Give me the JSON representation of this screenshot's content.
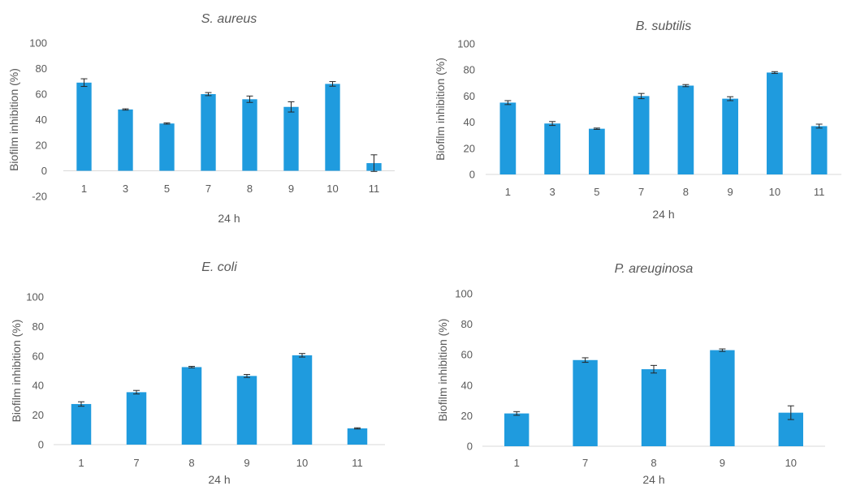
{
  "chart_data": [
    {
      "type": "bar",
      "title": "S. aureus",
      "xlabel": "24 h",
      "ylabel": "Biofilm inhibition (%)",
      "ylim": [
        -20,
        100
      ],
      "yticks": [
        -20,
        0,
        20,
        40,
        60,
        80,
        100
      ],
      "categories": [
        "1",
        "3",
        "5",
        "7",
        "8",
        "9",
        "10",
        "11"
      ],
      "values": [
        69,
        48,
        37,
        60,
        56,
        50,
        68,
        6
      ],
      "errors": [
        3,
        0.5,
        0.5,
        1.2,
        2.5,
        4,
        1.8,
        6.5
      ],
      "grid": false,
      "bar_color": "#1f9bde"
    },
    {
      "type": "bar",
      "title": "B. subtilis",
      "xlabel": "24 h",
      "ylabel": "Biofilm inhibition (%)",
      "ylim": [
        0,
        100
      ],
      "yticks": [
        0,
        20,
        40,
        60,
        80,
        100
      ],
      "categories": [
        "1",
        "3",
        "5",
        "7",
        "8",
        "9",
        "10",
        "11"
      ],
      "values": [
        55,
        39,
        35,
        60,
        68,
        58,
        78,
        37
      ],
      "errors": [
        1.5,
        1.5,
        0.5,
        2,
        0.8,
        1.5,
        0.7,
        1.5
      ],
      "grid": false,
      "bar_color": "#1f9bde"
    },
    {
      "type": "bar",
      "title": "E. coli",
      "xlabel": "24 h",
      "ylabel": "Biofilm inhibition (%)",
      "ylim": [
        0,
        100
      ],
      "yticks": [
        0,
        20,
        40,
        60,
        80,
        100
      ],
      "categories": [
        "1",
        "7",
        "8",
        "9",
        "10",
        "11"
      ],
      "values": [
        27.5,
        35.5,
        52.5,
        46.5,
        60.5,
        11
      ],
      "errors": [
        1.5,
        1.2,
        0.5,
        1,
        1.2,
        0.4
      ],
      "grid": false,
      "bar_color": "#1f9bde"
    },
    {
      "type": "bar",
      "title": "P. areuginosa",
      "xlabel": "24 h",
      "ylabel": "Biofilm inhibition (%)",
      "ylim": [
        0,
        100
      ],
      "yticks": [
        0,
        20,
        40,
        60,
        80,
        100
      ],
      "categories": [
        "1",
        "7",
        "8",
        "9",
        "10"
      ],
      "values": [
        21.5,
        56.5,
        50.5,
        63,
        22
      ],
      "errors": [
        1.2,
        1.5,
        2.5,
        0.8,
        4.5
      ],
      "grid": false,
      "bar_color": "#1f9bde"
    }
  ]
}
